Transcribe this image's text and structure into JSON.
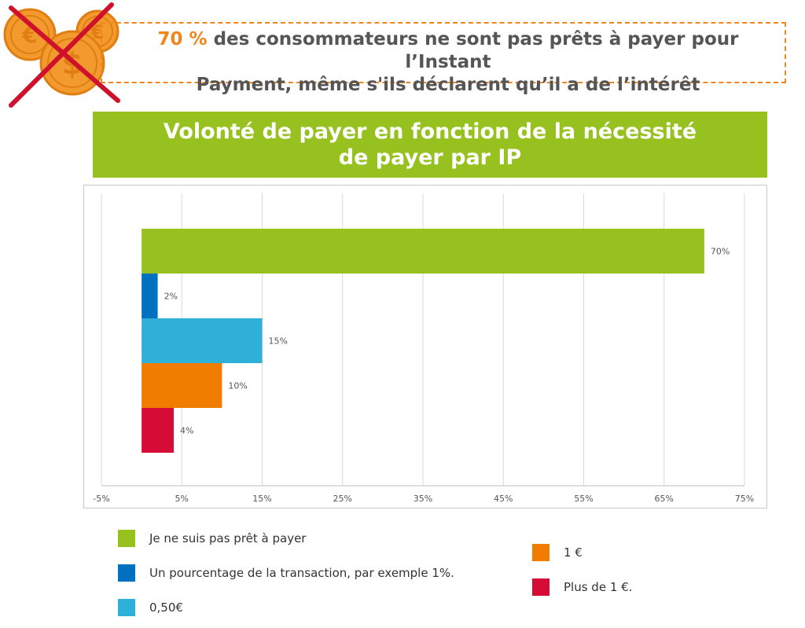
{
  "header": {
    "highlight": "70 %",
    "text_line1_rest": " des consommateurs ne sont pas prêts à payer pour l’Instant",
    "text_line2": "Payment, même s'ils déclarent qu’il a de l’intérêt"
  },
  "banner": {
    "title_line1": "Volonté de payer en fonction de la nécessité",
    "title_line2": "de payer par IP"
  },
  "colors": {
    "accent_orange": "#f0861c",
    "banner_green": "#96c11f",
    "coin": "#f29a2e",
    "cross": "#d0112b"
  },
  "chart_data": {
    "type": "bar",
    "orientation": "horizontal",
    "series": [
      {
        "name": "Je ne suis pas prêt à payer",
        "value": 70,
        "label": "70%",
        "color": "#96c11f"
      },
      {
        "name": "Un pourcentage de la transaction, par exemple 1%.",
        "value": 2,
        "label": "2%",
        "color": "#0070c0"
      },
      {
        "name": "0,50€",
        "value": 15,
        "label": "15%",
        "color": "#2fb0d9"
      },
      {
        "name": "1 €",
        "value": 10,
        "label": "10%",
        "color": "#f07d00"
      },
      {
        "name": "Plus de 1 €.",
        "value": 4,
        "label": "4%",
        "color": "#d50d36"
      }
    ],
    "xlim": [
      -5,
      75
    ],
    "xticks": [
      -5,
      5,
      15,
      25,
      35,
      45,
      55,
      65,
      75
    ],
    "xtick_labels": [
      "-5%",
      "5%",
      "15%",
      "25%",
      "35%",
      "45%",
      "55%",
      "65%",
      "75%"
    ],
    "grid": true,
    "legend_position": "bottom"
  }
}
